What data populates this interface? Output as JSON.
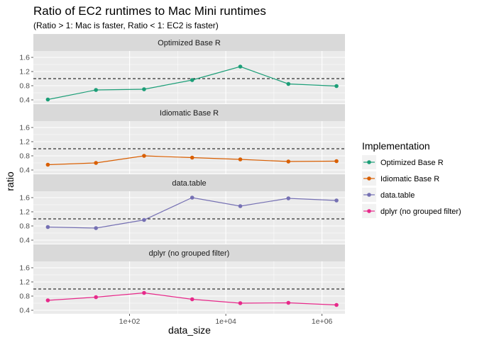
{
  "chart_data": {
    "type": "line",
    "title": "Ratio of EC2 runtimes to Mac Mini runtimes",
    "subtitle": "(Ratio > 1: Mac is faster, Ratio < 1: EC2 is faster)",
    "xlabel": "data_size",
    "ylabel": "ratio",
    "x_scale": "log10",
    "xlim": [
      1,
      3000000
    ],
    "x_ticks": [
      100,
      10000,
      1000000
    ],
    "x_tick_labels": [
      "1e+02",
      "1e+04",
      "1e+06"
    ],
    "ylim": [
      0.3,
      1.78
    ],
    "y_ticks": [
      0.4,
      0.8,
      1.2,
      1.6
    ],
    "y_tick_labels": [
      "0.4",
      "0.8",
      "1.2",
      "1.6"
    ],
    "reference_line": 1.0,
    "grid": true,
    "legend_title": "Implementation",
    "legend_position": "right",
    "x": [
      2,
      20,
      200,
      2000,
      20000,
      200000,
      2000000
    ],
    "series": [
      {
        "name": "Optimized Base R",
        "color": "#1b9e77",
        "values": [
          0.41,
          0.68,
          0.7,
          0.96,
          1.34,
          0.85,
          0.79
        ]
      },
      {
        "name": "Idiomatic Base R",
        "color": "#d95f02",
        "values": [
          0.55,
          0.6,
          0.8,
          0.75,
          0.7,
          0.64,
          0.65
        ]
      },
      {
        "name": "data.table",
        "color": "#7570b3",
        "values": [
          0.77,
          0.74,
          0.97,
          1.6,
          1.36,
          1.58,
          1.52
        ]
      },
      {
        "name": "dplyr (no grouped filter)",
        "color": "#e7298a",
        "values": [
          0.68,
          0.77,
          0.89,
          0.71,
          0.6,
          0.61,
          0.55
        ]
      }
    ]
  }
}
